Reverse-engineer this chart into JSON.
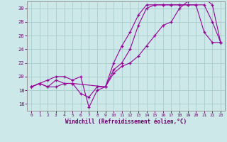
{
  "xlabel": "Windchill (Refroidissement éolien,°C)",
  "xlim": [
    -0.5,
    23.5
  ],
  "ylim": [
    15,
    31
  ],
  "yticks": [
    16,
    18,
    20,
    22,
    24,
    26,
    28,
    30
  ],
  "xticks": [
    0,
    1,
    2,
    3,
    4,
    5,
    6,
    7,
    8,
    9,
    10,
    11,
    12,
    13,
    14,
    15,
    16,
    17,
    18,
    19,
    20,
    21,
    22,
    23
  ],
  "bg_color": "#cce8e8",
  "grid_color": "#aacccc",
  "line_color": "#990099",
  "series": [
    {
      "x": [
        0,
        1,
        2,
        3,
        4,
        5,
        6,
        7,
        8,
        9,
        10,
        11,
        12,
        13,
        14,
        15,
        16,
        17,
        18,
        19,
        20,
        21,
        22,
        23
      ],
      "y": [
        18.5,
        19.0,
        18.5,
        19.5,
        19.0,
        19.0,
        17.5,
        17.0,
        18.5,
        18.5,
        22.0,
        24.5,
        26.5,
        29.0,
        30.5,
        30.5,
        30.5,
        30.5,
        30.5,
        30.5,
        30.5,
        30.5,
        28.0,
        25.0
      ]
    },
    {
      "x": [
        0,
        1,
        2,
        3,
        4,
        5,
        9,
        10,
        11,
        12,
        13,
        14,
        15,
        16,
        17,
        18,
        19,
        20,
        21,
        22,
        23
      ],
      "y": [
        18.5,
        19.0,
        18.5,
        18.5,
        19.0,
        19.0,
        18.5,
        21.0,
        22.0,
        24.0,
        27.5,
        30.0,
        30.5,
        30.5,
        30.5,
        30.5,
        30.5,
        30.5,
        26.5,
        25.0,
        25.0
      ]
    },
    {
      "x": [
        0,
        1,
        2,
        3,
        4,
        5,
        6,
        7,
        8,
        9,
        10,
        11,
        12,
        13,
        14,
        15,
        16,
        17,
        18,
        19,
        20,
        21,
        22,
        23
      ],
      "y": [
        18.5,
        19.0,
        19.5,
        20.0,
        20.0,
        19.5,
        20.0,
        15.5,
        18.0,
        18.5,
        20.5,
        21.5,
        22.0,
        23.0,
        24.5,
        26.0,
        27.5,
        28.0,
        30.0,
        31.0,
        31.5,
        31.5,
        30.5,
        25.0
      ]
    }
  ]
}
